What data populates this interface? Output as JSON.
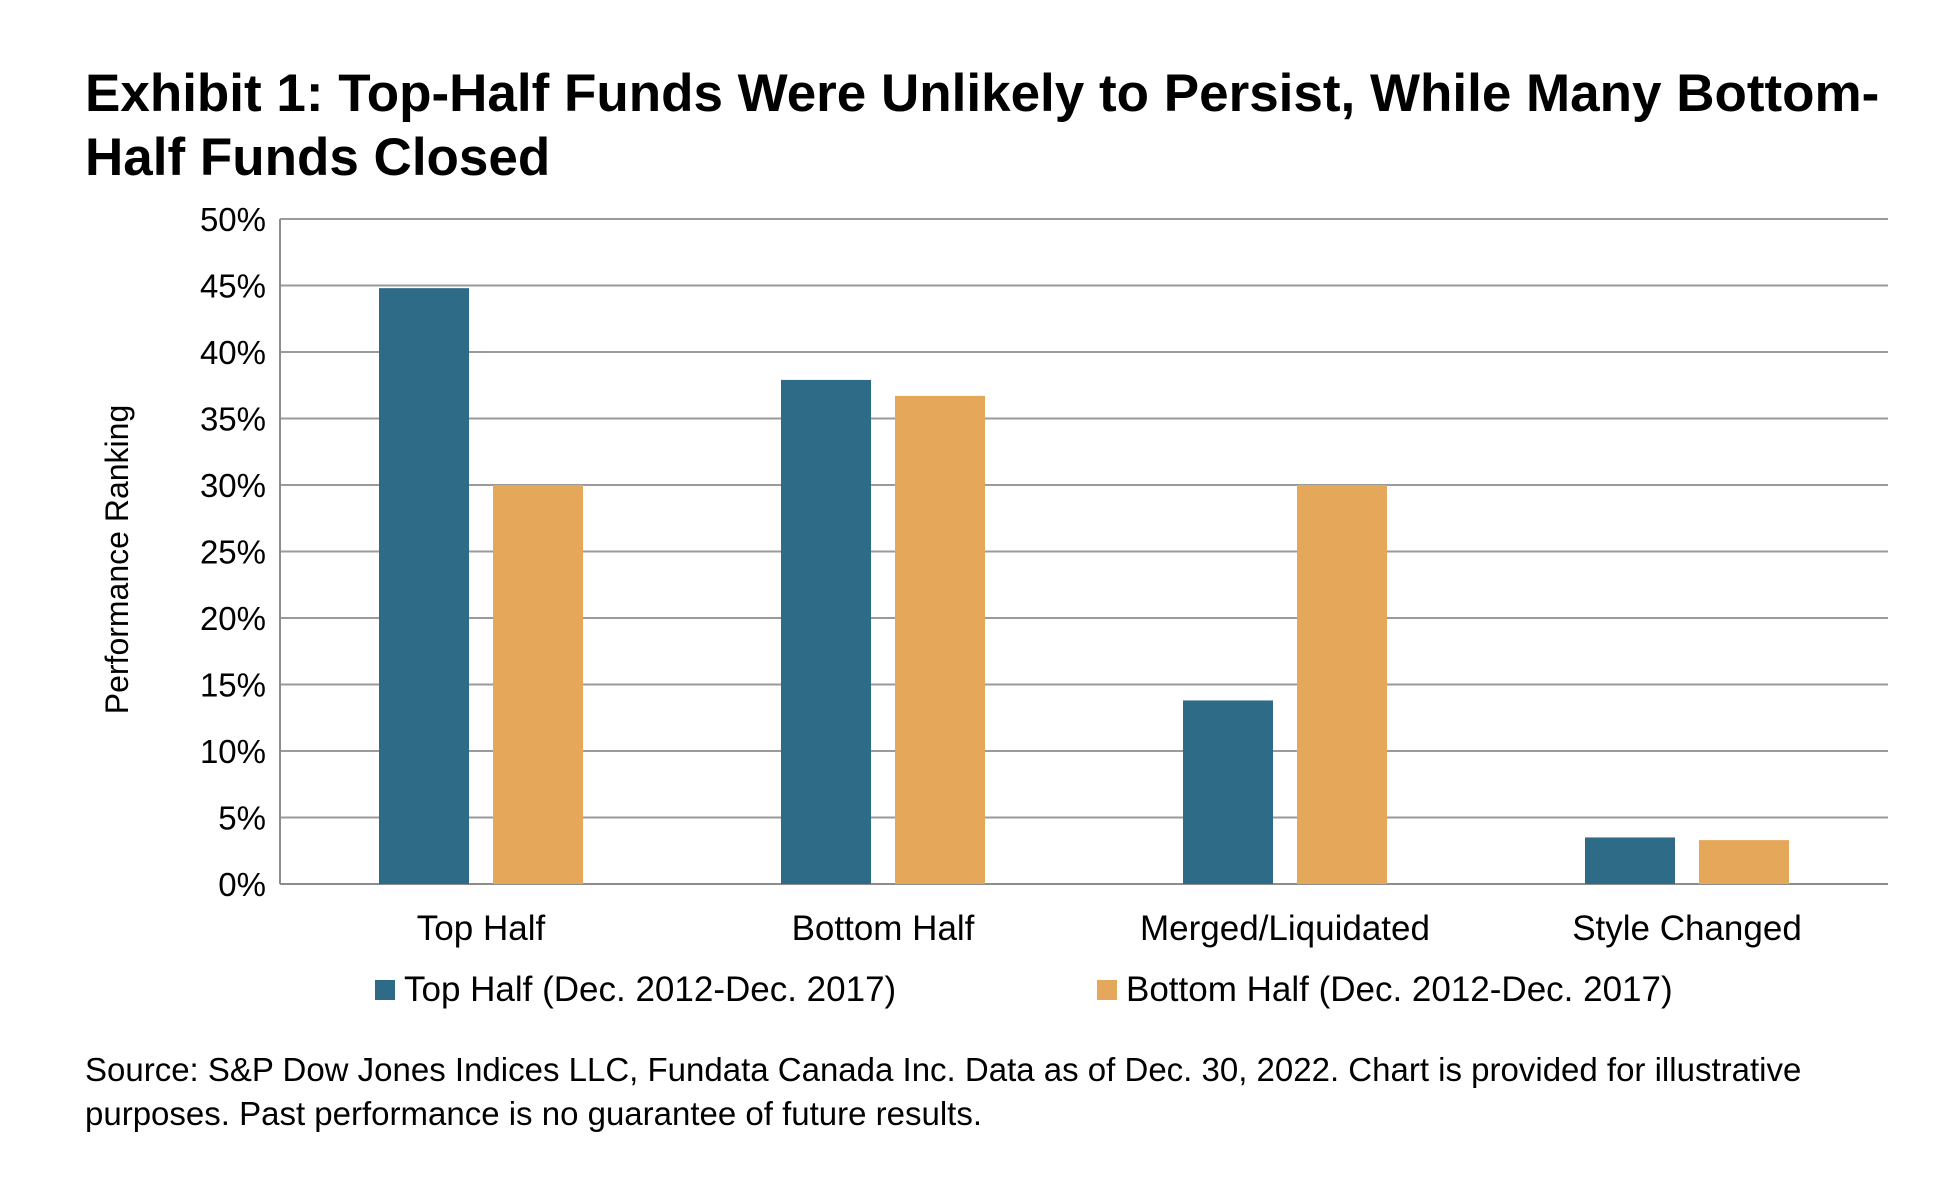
{
  "chart_data": {
    "type": "bar",
    "title": "Exhibit 1: Top-Half Funds Were Unlikely to Persist, While Many Bottom-Half Funds Closed",
    "ylabel": "Performance Ranking",
    "xlabel": "",
    "categories": [
      "Top Half",
      "Bottom Half",
      "Merged/Liquidated",
      "Style Changed"
    ],
    "series": [
      {
        "name": "Top Half (Dec. 2012-Dec. 2017)",
        "color": "#2E6B87",
        "values": [
          44.8,
          37.9,
          13.8,
          3.5
        ]
      },
      {
        "name": "Bottom Half (Dec. 2012-Dec. 2017)",
        "color": "#E5A85B",
        "values": [
          30.0,
          36.7,
          30.0,
          3.3
        ]
      }
    ],
    "ylim": [
      0,
      50
    ],
    "yticks": [
      0,
      5,
      10,
      15,
      20,
      25,
      30,
      35,
      40,
      45,
      50
    ],
    "ytick_labels": [
      "0%",
      "5%",
      "10%",
      "15%",
      "20%",
      "25%",
      "30%",
      "35%",
      "40%",
      "45%",
      "50%"
    ],
    "grid": true,
    "legend_position": "bottom"
  },
  "source": "Source: S&P Dow Jones Indices LLC, Fundata Canada Inc.  Data as of Dec. 30, 2022.  Chart is provided for illustrative purposes.  Past performance is no guarantee of future results."
}
